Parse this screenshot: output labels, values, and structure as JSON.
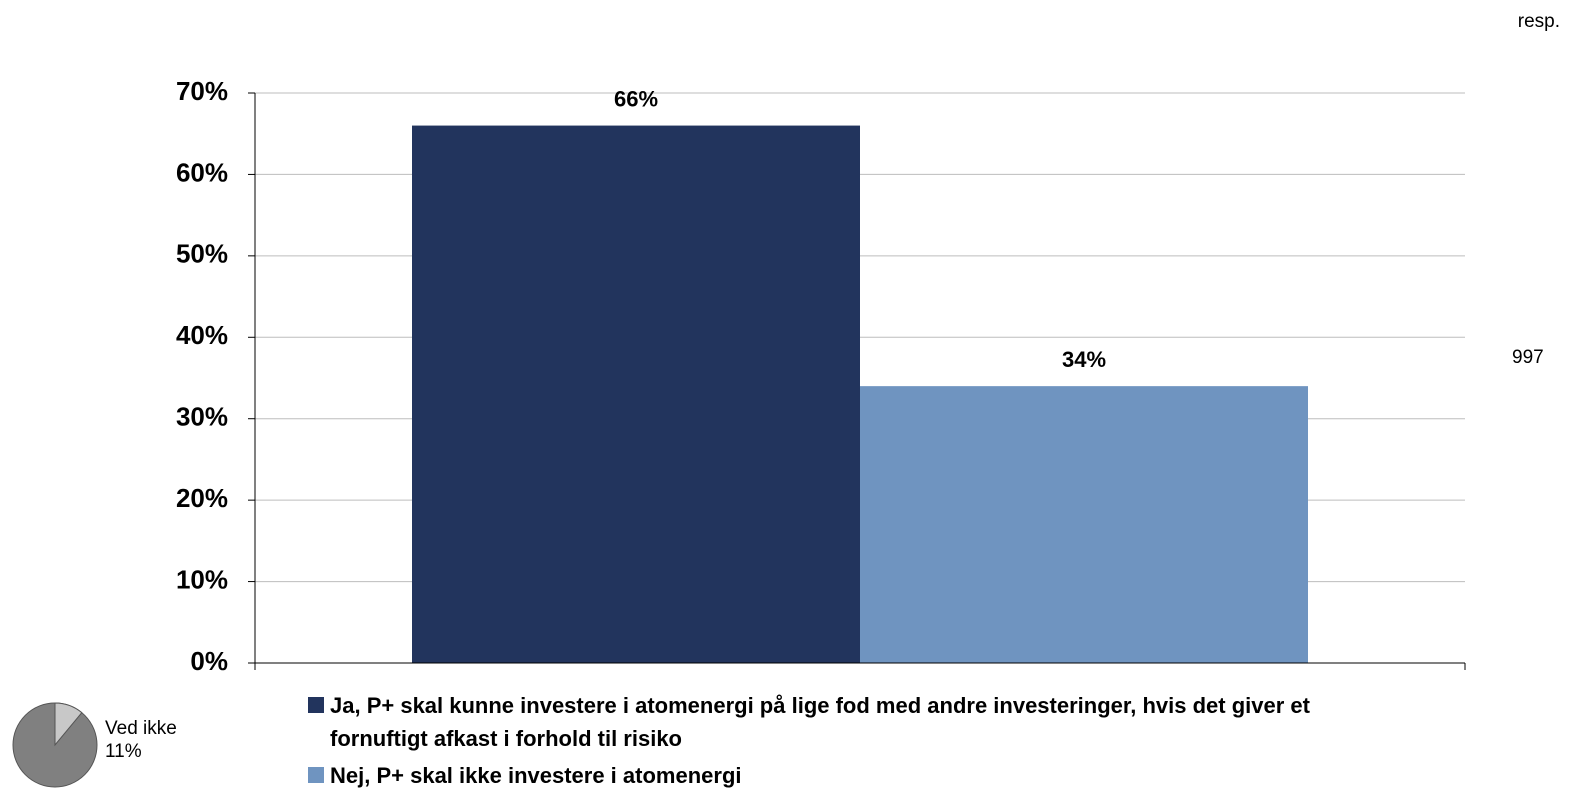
{
  "chart_data": [
    {
      "type": "bar",
      "categories": [
        null
      ],
      "series": [
        {
          "name": "Ja, P+ skal kunne investere i atomenergi på lige fod med andre investeringer, hvis det giver et fornuftigt afkast i forhold til risiko",
          "color": "#22345d",
          "values": [
            66
          ],
          "value_labels": [
            "66%"
          ]
        },
        {
          "name": "Nej, P+ skal ikke investere i atomenergi",
          "color": "#6f94c0",
          "values": [
            34
          ],
          "value_labels": [
            "34%"
          ]
        }
      ],
      "ylim": [
        0,
        70
      ],
      "yticks": [
        {
          "value": 0,
          "label": "0%"
        },
        {
          "value": 10,
          "label": "10%"
        },
        {
          "value": 20,
          "label": "20%"
        },
        {
          "value": 30,
          "label": "30%"
        },
        {
          "value": 40,
          "label": "40%"
        },
        {
          "value": 50,
          "label": "50%"
        },
        {
          "value": 60,
          "label": "60%"
        },
        {
          "value": 70,
          "label": "70%"
        }
      ],
      "grid": true,
      "legend": "bottom",
      "annotations": [
        "resp.",
        "997"
      ]
    },
    {
      "type": "pie",
      "categories": [
        "Ved ikke"
      ],
      "values": [
        11
      ],
      "value_labels": [
        "11%"
      ],
      "color": "#c8c8c8"
    }
  ]
}
